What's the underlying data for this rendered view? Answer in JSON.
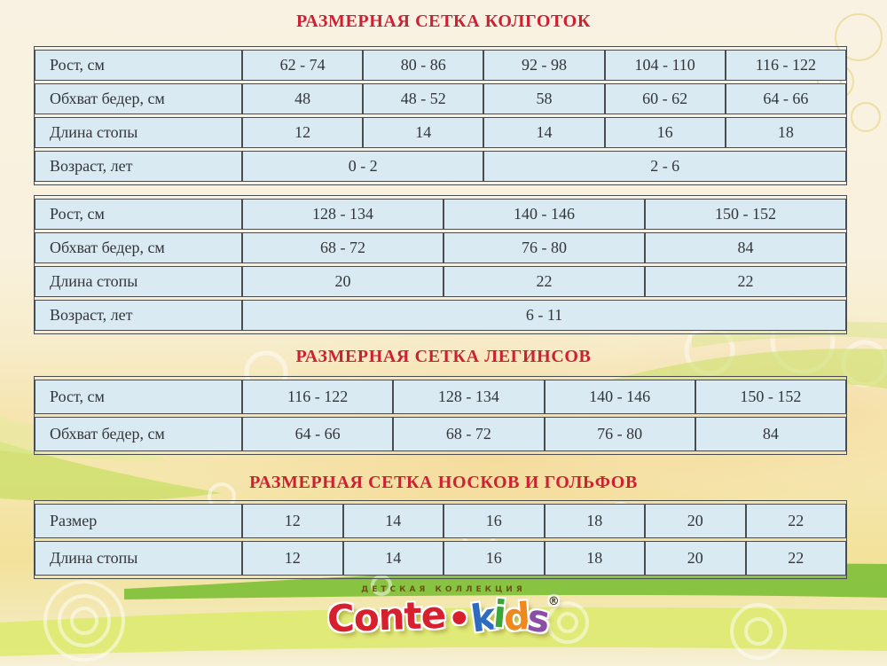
{
  "colors": {
    "title_red": "#cd2133",
    "cell_fill": "#daeaf3",
    "border_dark": "#4a4d50",
    "background_cream": "#f9f2e2",
    "band_green": "#83c13c",
    "band_chartreuse": "#dcea6b"
  },
  "sections": [
    {
      "title": "РАЗМЕРНАЯ СЕТКА КОЛГОТОК",
      "tables": [
        {
          "data_columns": 5,
          "rows": [
            {
              "label": "Рост, см",
              "cells": [
                {
                  "text": "62 - 74",
                  "span": 1
                },
                {
                  "text": "80 - 86",
                  "span": 1
                },
                {
                  "text": "92 - 98",
                  "span": 1
                },
                {
                  "text": "104 - 110",
                  "span": 1
                },
                {
                  "text": "116 - 122",
                  "span": 1
                }
              ]
            },
            {
              "label": "Обхват бедер, см",
              "cells": [
                {
                  "text": "48",
                  "span": 1
                },
                {
                  "text": "48 - 52",
                  "span": 1
                },
                {
                  "text": "58",
                  "span": 1
                },
                {
                  "text": "60 - 62",
                  "span": 1
                },
                {
                  "text": "64 - 66",
                  "span": 1
                }
              ]
            },
            {
              "label": "Длина стопы",
              "cells": [
                {
                  "text": "12",
                  "span": 1
                },
                {
                  "text": "14",
                  "span": 1
                },
                {
                  "text": "14",
                  "span": 1
                },
                {
                  "text": "16",
                  "span": 1
                },
                {
                  "text": "18",
                  "span": 1
                }
              ]
            },
            {
              "label": "Возраст, лет",
              "cells": [
                {
                  "text": "0 - 2",
                  "span": 2
                },
                {
                  "text": "2 - 6",
                  "span": 3
                }
              ]
            }
          ]
        },
        {
          "data_columns": 3,
          "rows": [
            {
              "label": "Рост, см",
              "cells": [
                {
                  "text": "128 - 134",
                  "span": 1
                },
                {
                  "text": "140 - 146",
                  "span": 1
                },
                {
                  "text": "150 - 152",
                  "span": 1
                }
              ]
            },
            {
              "label": "Обхват бедер, см",
              "cells": [
                {
                  "text": "68 - 72",
                  "span": 1
                },
                {
                  "text": "76 - 80",
                  "span": 1
                },
                {
                  "text": "84",
                  "span": 1
                }
              ]
            },
            {
              "label": "Длина стопы",
              "cells": [
                {
                  "text": "20",
                  "span": 1
                },
                {
                  "text": "22",
                  "span": 1
                },
                {
                  "text": "22",
                  "span": 1
                }
              ]
            },
            {
              "label": "Возраст, лет",
              "cells": [
                {
                  "text": "6 - 11",
                  "span": 3
                }
              ]
            }
          ]
        }
      ]
    },
    {
      "title": "РАЗМЕРНАЯ СЕТКА ЛЕГИНСОВ",
      "tables": [
        {
          "data_columns": 4,
          "rows": [
            {
              "label": "Рост, см",
              "cells": [
                {
                  "text": "116 - 122",
                  "span": 1
                },
                {
                  "text": "128 - 134",
                  "span": 1
                },
                {
                  "text": "140 - 146",
                  "span": 1
                },
                {
                  "text": "150 - 152",
                  "span": 1
                }
              ]
            },
            {
              "label": "Обхват бедер, см",
              "cells": [
                {
                  "text": "64 - 66",
                  "span": 1
                },
                {
                  "text": "68 - 72",
                  "span": 1
                },
                {
                  "text": "76 - 80",
                  "span": 1
                },
                {
                  "text": "84",
                  "span": 1
                }
              ]
            }
          ]
        }
      ]
    },
    {
      "title": "РАЗМЕРНАЯ СЕТКА НОСКОВ И ГОЛЬФОВ",
      "tables": [
        {
          "data_columns": 6,
          "rows": [
            {
              "label": "Размер",
              "cells": [
                {
                  "text": "12",
                  "span": 1
                },
                {
                  "text": "14",
                  "span": 1
                },
                {
                  "text": "16",
                  "span": 1
                },
                {
                  "text": "18",
                  "span": 1
                },
                {
                  "text": "20",
                  "span": 1
                },
                {
                  "text": "22",
                  "span": 1
                }
              ]
            },
            {
              "label": "Длина стопы",
              "cells": [
                {
                  "text": "12",
                  "span": 1
                },
                {
                  "text": "14",
                  "span": 1
                },
                {
                  "text": "16",
                  "span": 1
                },
                {
                  "text": "18",
                  "span": 1
                },
                {
                  "text": "20",
                  "span": 1
                },
                {
                  "text": "22",
                  "span": 1
                }
              ]
            }
          ]
        }
      ]
    }
  ],
  "logo": {
    "tagline": "ДЕТСКАЯ КОЛЛЕКЦИЯ",
    "conte": "Conte",
    "conte_color": "#d81f2e",
    "dot": "•",
    "dot_color": "#d81f2e",
    "kids_letters": [
      {
        "char": "k",
        "color": "#2e6cc0"
      },
      {
        "char": "i",
        "color": "#3ba43b"
      },
      {
        "char": "d",
        "color": "#f0891d"
      },
      {
        "char": "s",
        "color": "#8a4da8"
      }
    ],
    "registered": "®"
  }
}
